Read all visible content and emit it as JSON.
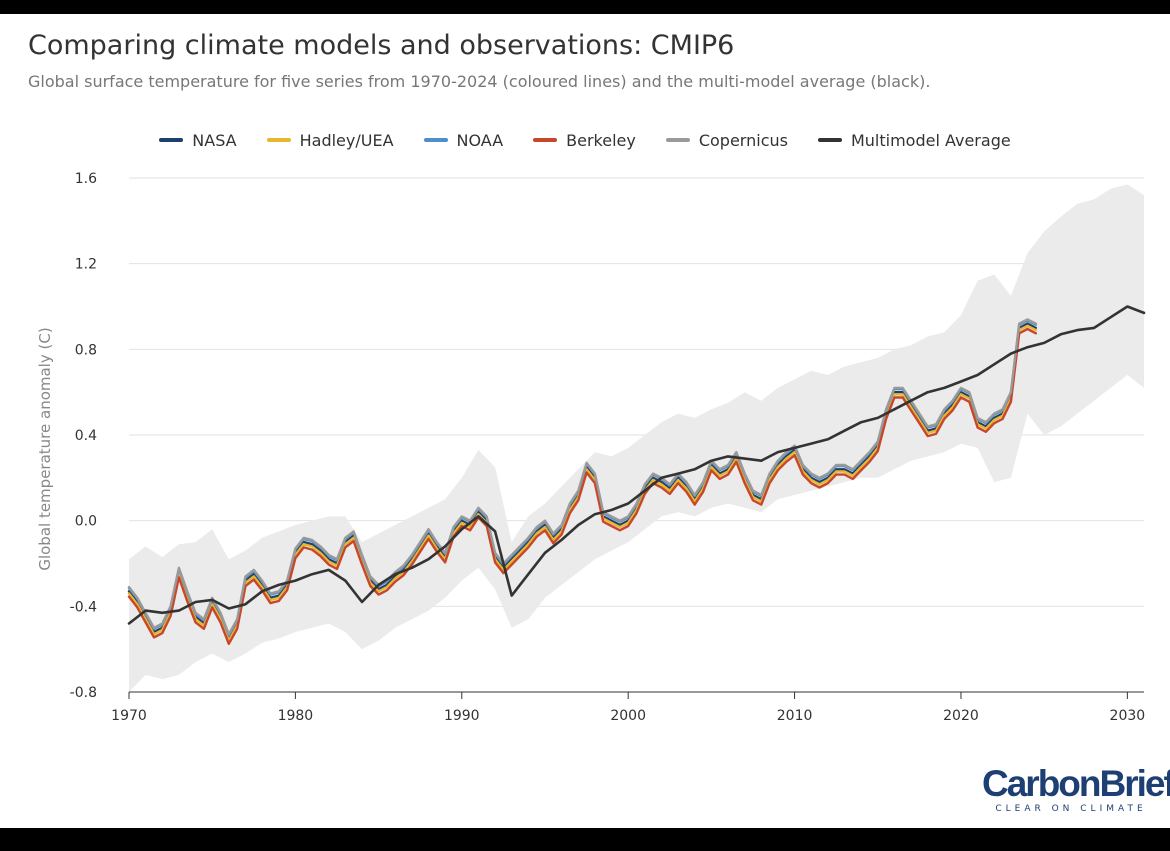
{
  "header": {
    "title": "Comparing climate models and observations: CMIP6",
    "subtitle": "Global surface temperature for five series from 1970-2024 (coloured lines) and the multi-model average (black)."
  },
  "logo": {
    "name": "CarbonBrief",
    "tagline": "CLEAR ON CLIMATE"
  },
  "chart_data": {
    "type": "line",
    "title": "Comparing climate models and observations: CMIP6",
    "ylabel": "Global temperature anomaly (C)",
    "xlabel": "",
    "xlim": [
      1970,
      2031
    ],
    "ylim": [
      -0.8,
      1.6
    ],
    "xticks": [
      "1970",
      "1980",
      "1990",
      "2000",
      "2010",
      "2020",
      "2030"
    ],
    "yticks": [
      "-0.8",
      "-0.4",
      "0.0",
      "0.4",
      "0.8",
      "1.2",
      "1.6"
    ],
    "grid": "horizontal",
    "legend": "top-center",
    "legend_entries": [
      "NASA",
      "Hadley/UEA",
      "NOAA",
      "Berkeley",
      "Copernicus",
      "Multimodel Average"
    ],
    "obs_x": [
      1970,
      1970.5,
      1971,
      1971.5,
      1972,
      1972.5,
      1973,
      1973.5,
      1974,
      1974.5,
      1975,
      1975.5,
      1976,
      1976.5,
      1977,
      1977.5,
      1978,
      1978.5,
      1979,
      1979.5,
      1980,
      1980.5,
      1981,
      1981.5,
      1982,
      1982.5,
      1983,
      1983.5,
      1984,
      1984.5,
      1985,
      1985.5,
      1986,
      1986.5,
      1987,
      1987.5,
      1988,
      1988.5,
      1989,
      1989.5,
      1990,
      1990.5,
      1991,
      1991.5,
      1992,
      1992.5,
      1993,
      1993.5,
      1994,
      1994.5,
      1995,
      1995.5,
      1996,
      1996.5,
      1997,
      1997.5,
      1998,
      1998.5,
      1999,
      1999.5,
      2000,
      2000.5,
      2001,
      2001.5,
      2002,
      2002.5,
      2003,
      2003.5,
      2004,
      2004.5,
      2005,
      2005.5,
      2006,
      2006.5,
      2007,
      2007.5,
      2008,
      2008.5,
      2009,
      2009.5,
      2010,
      2010.5,
      2011,
      2011.5,
      2012,
      2012.5,
      2013,
      2013.5,
      2014,
      2014.5,
      2015,
      2015.5,
      2016,
      2016.5,
      2017,
      2017.5,
      2018,
      2018.5,
      2019,
      2019.5,
      2020,
      2020.5,
      2021,
      2021.5,
      2022,
      2022.5,
      2023,
      2023.5,
      2024,
      2024.5
    ],
    "series": [
      {
        "name": "NASA",
        "color": "#1d3f6e",
        "offset": 0.0
      },
      {
        "name": "Hadley/UEA",
        "color": "#e8b730",
        "offset": -0.01
      },
      {
        "name": "NOAA",
        "color": "#4f8fc9",
        "offset": 0.015
      },
      {
        "name": "Berkeley",
        "color": "#c8472a",
        "offset": -0.025
      },
      {
        "name": "Copernicus",
        "color": "#9a9a9a",
        "offset": 0.02
      }
    ],
    "obs_base": [
      -0.33,
      -0.38,
      -0.45,
      -0.52,
      -0.5,
      -0.42,
      -0.24,
      -0.35,
      -0.45,
      -0.48,
      -0.38,
      -0.45,
      -0.55,
      -0.48,
      -0.28,
      -0.25,
      -0.3,
      -0.36,
      -0.35,
      -0.3,
      -0.15,
      -0.1,
      -0.11,
      -0.14,
      -0.18,
      -0.2,
      -0.1,
      -0.07,
      -0.18,
      -0.28,
      -0.32,
      -0.3,
      -0.26,
      -0.23,
      -0.18,
      -0.12,
      -0.06,
      -0.12,
      -0.17,
      -0.05,
      0.0,
      -0.02,
      0.04,
      0.0,
      -0.17,
      -0.22,
      -0.18,
      -0.14,
      -0.1,
      -0.05,
      -0.02,
      -0.08,
      -0.04,
      0.06,
      0.12,
      0.25,
      0.2,
      0.02,
      0.0,
      -0.02,
      0.0,
      0.06,
      0.15,
      0.2,
      0.18,
      0.15,
      0.2,
      0.16,
      0.1,
      0.16,
      0.26,
      0.22,
      0.24,
      0.3,
      0.2,
      0.12,
      0.1,
      0.2,
      0.26,
      0.3,
      0.33,
      0.24,
      0.2,
      0.18,
      0.2,
      0.24,
      0.24,
      0.22,
      0.26,
      0.3,
      0.35,
      0.5,
      0.6,
      0.6,
      0.54,
      0.48,
      0.42,
      0.43,
      0.5,
      0.54,
      0.6,
      0.58,
      0.46,
      0.44,
      0.48,
      0.5,
      0.58,
      0.9,
      0.92,
      0.9
    ],
    "mm_x": [
      1970,
      1971,
      1972,
      1973,
      1974,
      1975,
      1976,
      1977,
      1978,
      1979,
      1980,
      1981,
      1982,
      1983,
      1984,
      1985,
      1986,
      1987,
      1988,
      1989,
      1990,
      1991,
      1992,
      1993,
      1994,
      1995,
      1996,
      1997,
      1998,
      1999,
      2000,
      2001,
      2002,
      2003,
      2004,
      2005,
      2006,
      2007,
      2008,
      2009,
      2010,
      2011,
      2012,
      2013,
      2014,
      2015,
      2016,
      2017,
      2018,
      2019,
      2020,
      2021,
      2022,
      2023,
      2024,
      2025,
      2026,
      2027,
      2028,
      2029,
      2030,
      2031
    ],
    "mm_y": [
      -0.48,
      -0.42,
      -0.43,
      -0.42,
      -0.38,
      -0.37,
      -0.41,
      -0.39,
      -0.33,
      -0.3,
      -0.28,
      -0.25,
      -0.23,
      -0.28,
      -0.38,
      -0.3,
      -0.25,
      -0.22,
      -0.18,
      -0.12,
      -0.04,
      0.02,
      -0.05,
      -0.35,
      -0.25,
      -0.15,
      -0.09,
      -0.02,
      0.03,
      0.05,
      0.08,
      0.14,
      0.2,
      0.22,
      0.24,
      0.28,
      0.3,
      0.29,
      0.28,
      0.32,
      0.34,
      0.36,
      0.38,
      0.42,
      0.46,
      0.48,
      0.52,
      0.56,
      0.6,
      0.62,
      0.65,
      0.68,
      0.73,
      0.78,
      0.81,
      0.83,
      0.87,
      0.89,
      0.9,
      0.95,
      1.0,
      0.97
    ],
    "range_x": [
      1970,
      1971,
      1972,
      1973,
      1974,
      1975,
      1976,
      1977,
      1978,
      1979,
      1980,
      1981,
      1982,
      1983,
      1984,
      1985,
      1986,
      1987,
      1988,
      1989,
      1990,
      1991,
      1992,
      1993,
      1994,
      1995,
      1996,
      1997,
      1998,
      1999,
      2000,
      2001,
      2002,
      2003,
      2004,
      2005,
      2006,
      2007,
      2008,
      2009,
      2010,
      2011,
      2012,
      2013,
      2014,
      2015,
      2016,
      2017,
      2018,
      2019,
      2020,
      2021,
      2022,
      2023,
      2024,
      2025,
      2026,
      2027,
      2028,
      2029,
      2030,
      2031
    ],
    "range_upper": [
      -0.18,
      -0.12,
      -0.17,
      -0.11,
      -0.1,
      -0.04,
      -0.18,
      -0.14,
      -0.08,
      -0.05,
      -0.02,
      0.0,
      0.02,
      0.02,
      -0.1,
      -0.06,
      -0.02,
      0.02,
      0.06,
      0.1,
      0.2,
      0.33,
      0.25,
      -0.1,
      0.02,
      0.08,
      0.16,
      0.24,
      0.32,
      0.3,
      0.34,
      0.4,
      0.46,
      0.5,
      0.48,
      0.52,
      0.55,
      0.6,
      0.56,
      0.62,
      0.66,
      0.7,
      0.68,
      0.72,
      0.74,
      0.76,
      0.8,
      0.82,
      0.86,
      0.88,
      0.96,
      1.12,
      1.15,
      1.05,
      1.25,
      1.35,
      1.42,
      1.48,
      1.5,
      1.55,
      1.57,
      1.52
    ],
    "range_lower": [
      -0.8,
      -0.72,
      -0.74,
      -0.72,
      -0.66,
      -0.62,
      -0.66,
      -0.62,
      -0.57,
      -0.55,
      -0.52,
      -0.5,
      -0.48,
      -0.52,
      -0.6,
      -0.56,
      -0.5,
      -0.46,
      -0.42,
      -0.36,
      -0.28,
      -0.22,
      -0.32,
      -0.5,
      -0.46,
      -0.36,
      -0.3,
      -0.24,
      -0.18,
      -0.14,
      -0.1,
      -0.04,
      0.02,
      0.04,
      0.02,
      0.06,
      0.08,
      0.06,
      0.04,
      0.1,
      0.12,
      0.14,
      0.16,
      0.18,
      0.2,
      0.2,
      0.24,
      0.28,
      0.3,
      0.32,
      0.36,
      0.34,
      0.18,
      0.2,
      0.5,
      0.4,
      0.44,
      0.5,
      0.56,
      0.62,
      0.68,
      0.62
    ],
    "mm_color": "#333333",
    "range_color": "#ebebeb"
  }
}
